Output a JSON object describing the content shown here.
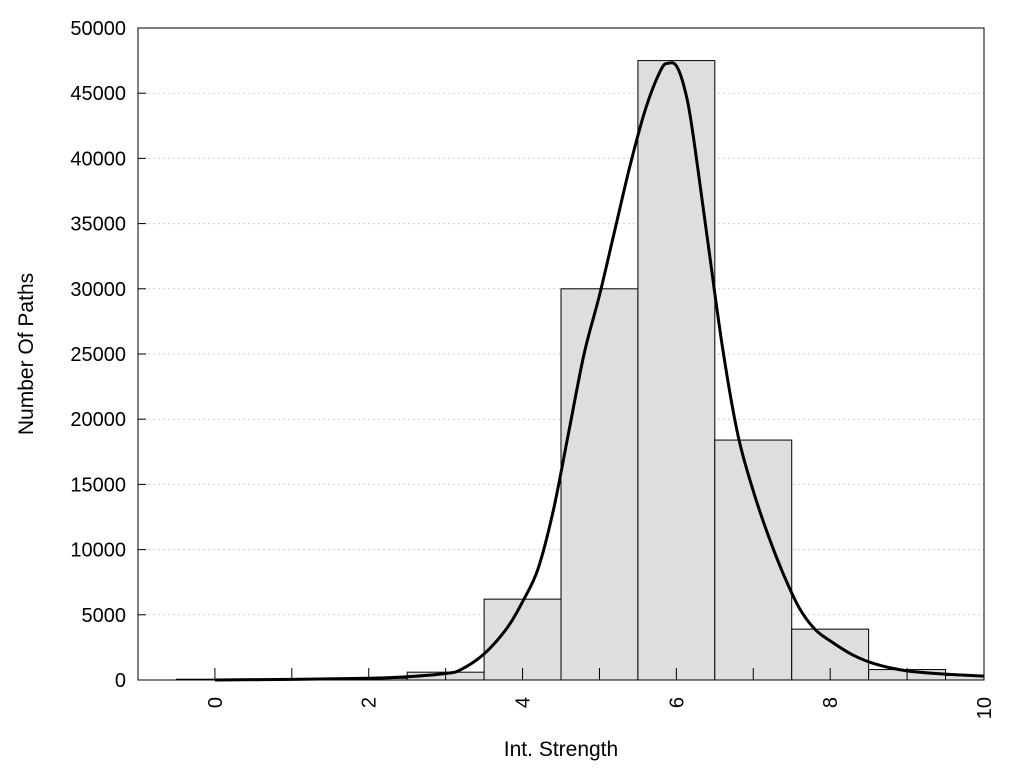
{
  "chart_data": {
    "type": "bar",
    "xlabel": "Int. Strength",
    "ylabel": "Number Of Paths",
    "xlim": [
      -1,
      10
    ],
    "ylim": [
      0,
      50000
    ],
    "xticks": [
      0,
      2,
      4,
      6,
      8,
      10
    ],
    "yticks": [
      0,
      5000,
      10000,
      15000,
      20000,
      25000,
      30000,
      35000,
      40000,
      45000,
      50000
    ],
    "grid": "horizontal dotted",
    "bar_color": "#dedede",
    "bar_edge_color": "#000000",
    "line_color": "#000000",
    "bars": {
      "categories": [
        0,
        1,
        2,
        3,
        4,
        5,
        6,
        7,
        8,
        9,
        10
      ],
      "values": [
        60,
        80,
        130,
        600,
        6200,
        30000,
        47500,
        18400,
        3900,
        800,
        350
      ]
    },
    "curve": {
      "x": [
        0,
        1,
        2,
        2.5,
        3,
        3.2,
        3.5,
        3.8,
        4,
        4.2,
        4.4,
        4.6,
        4.8,
        5,
        5.2,
        5.4,
        5.6,
        5.8,
        5.9,
        6,
        6.1,
        6.2,
        6.4,
        6.6,
        6.8,
        7,
        7.2,
        7.4,
        7.6,
        7.8,
        8,
        8.3,
        8.6,
        9,
        9.5,
        10
      ],
      "y": [
        0,
        50,
        130,
        250,
        500,
        800,
        2000,
        4000,
        6000,
        8500,
        13000,
        19000,
        25000,
        29500,
        34500,
        39500,
        43800,
        46800,
        47300,
        47100,
        45500,
        42500,
        34000,
        25500,
        18800,
        14500,
        11000,
        8000,
        5500,
        3900,
        3000,
        1900,
        1200,
        700,
        450,
        300
      ]
    }
  }
}
